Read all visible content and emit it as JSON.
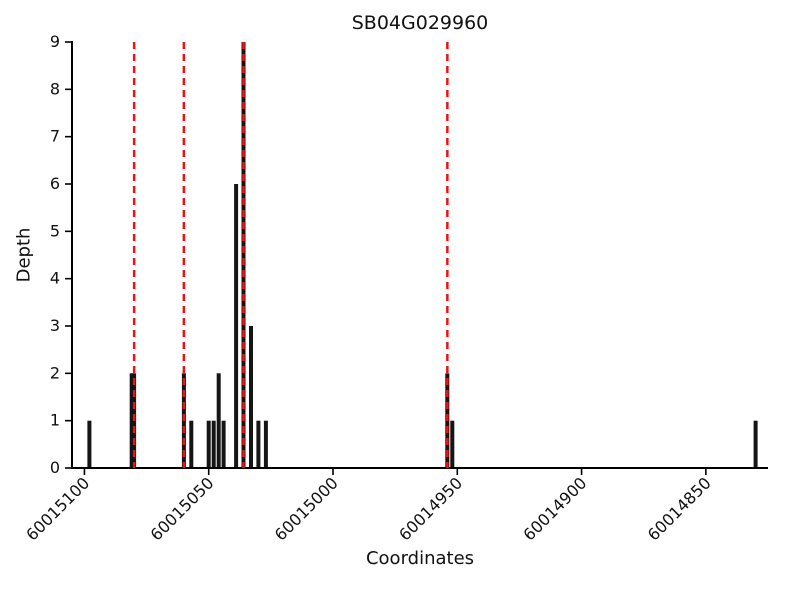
{
  "figure": {
    "title": "SB04G029960",
    "xlabel": "Coordinates",
    "ylabel": "Depth"
  },
  "chart_data": {
    "type": "bar",
    "title": "SB04G029960",
    "xlabel": "Coordinates",
    "ylabel": "Depth",
    "x_reversed": true,
    "xlim": [
      60015105,
      60014825
    ],
    "ylim": [
      0,
      9
    ],
    "x_ticks": [
      60015100,
      60015050,
      60015000,
      60014950,
      60014900,
      60014850
    ],
    "y_ticks": [
      0,
      1,
      2,
      3,
      4,
      5,
      6,
      7,
      8,
      9
    ],
    "bars": [
      {
        "coordinate": 60015098,
        "depth": 1
      },
      {
        "coordinate": 60015081,
        "depth": 2
      },
      {
        "coordinate": 60015080,
        "depth": 2
      },
      {
        "coordinate": 60015060,
        "depth": 2
      },
      {
        "coordinate": 60015057,
        "depth": 1
      },
      {
        "coordinate": 60015050,
        "depth": 1
      },
      {
        "coordinate": 60015048,
        "depth": 1
      },
      {
        "coordinate": 60015046,
        "depth": 2
      },
      {
        "coordinate": 60015044,
        "depth": 1
      },
      {
        "coordinate": 60015039,
        "depth": 6
      },
      {
        "coordinate": 60015036,
        "depth": 9
      },
      {
        "coordinate": 60015033,
        "depth": 3
      },
      {
        "coordinate": 60015030,
        "depth": 1
      },
      {
        "coordinate": 60015027,
        "depth": 1
      },
      {
        "coordinate": 60014954,
        "depth": 2
      },
      {
        "coordinate": 60014952,
        "depth": 1
      },
      {
        "coordinate": 60014830,
        "depth": 1
      }
    ],
    "marker_lines": {
      "style": "dashed",
      "color": "#e81515",
      "positions": [
        60015080,
        60015060,
        60015036,
        60014954
      ]
    },
    "bar_color": "#151515",
    "axis_color": "#000000",
    "legend": "none",
    "grid": "off"
  }
}
